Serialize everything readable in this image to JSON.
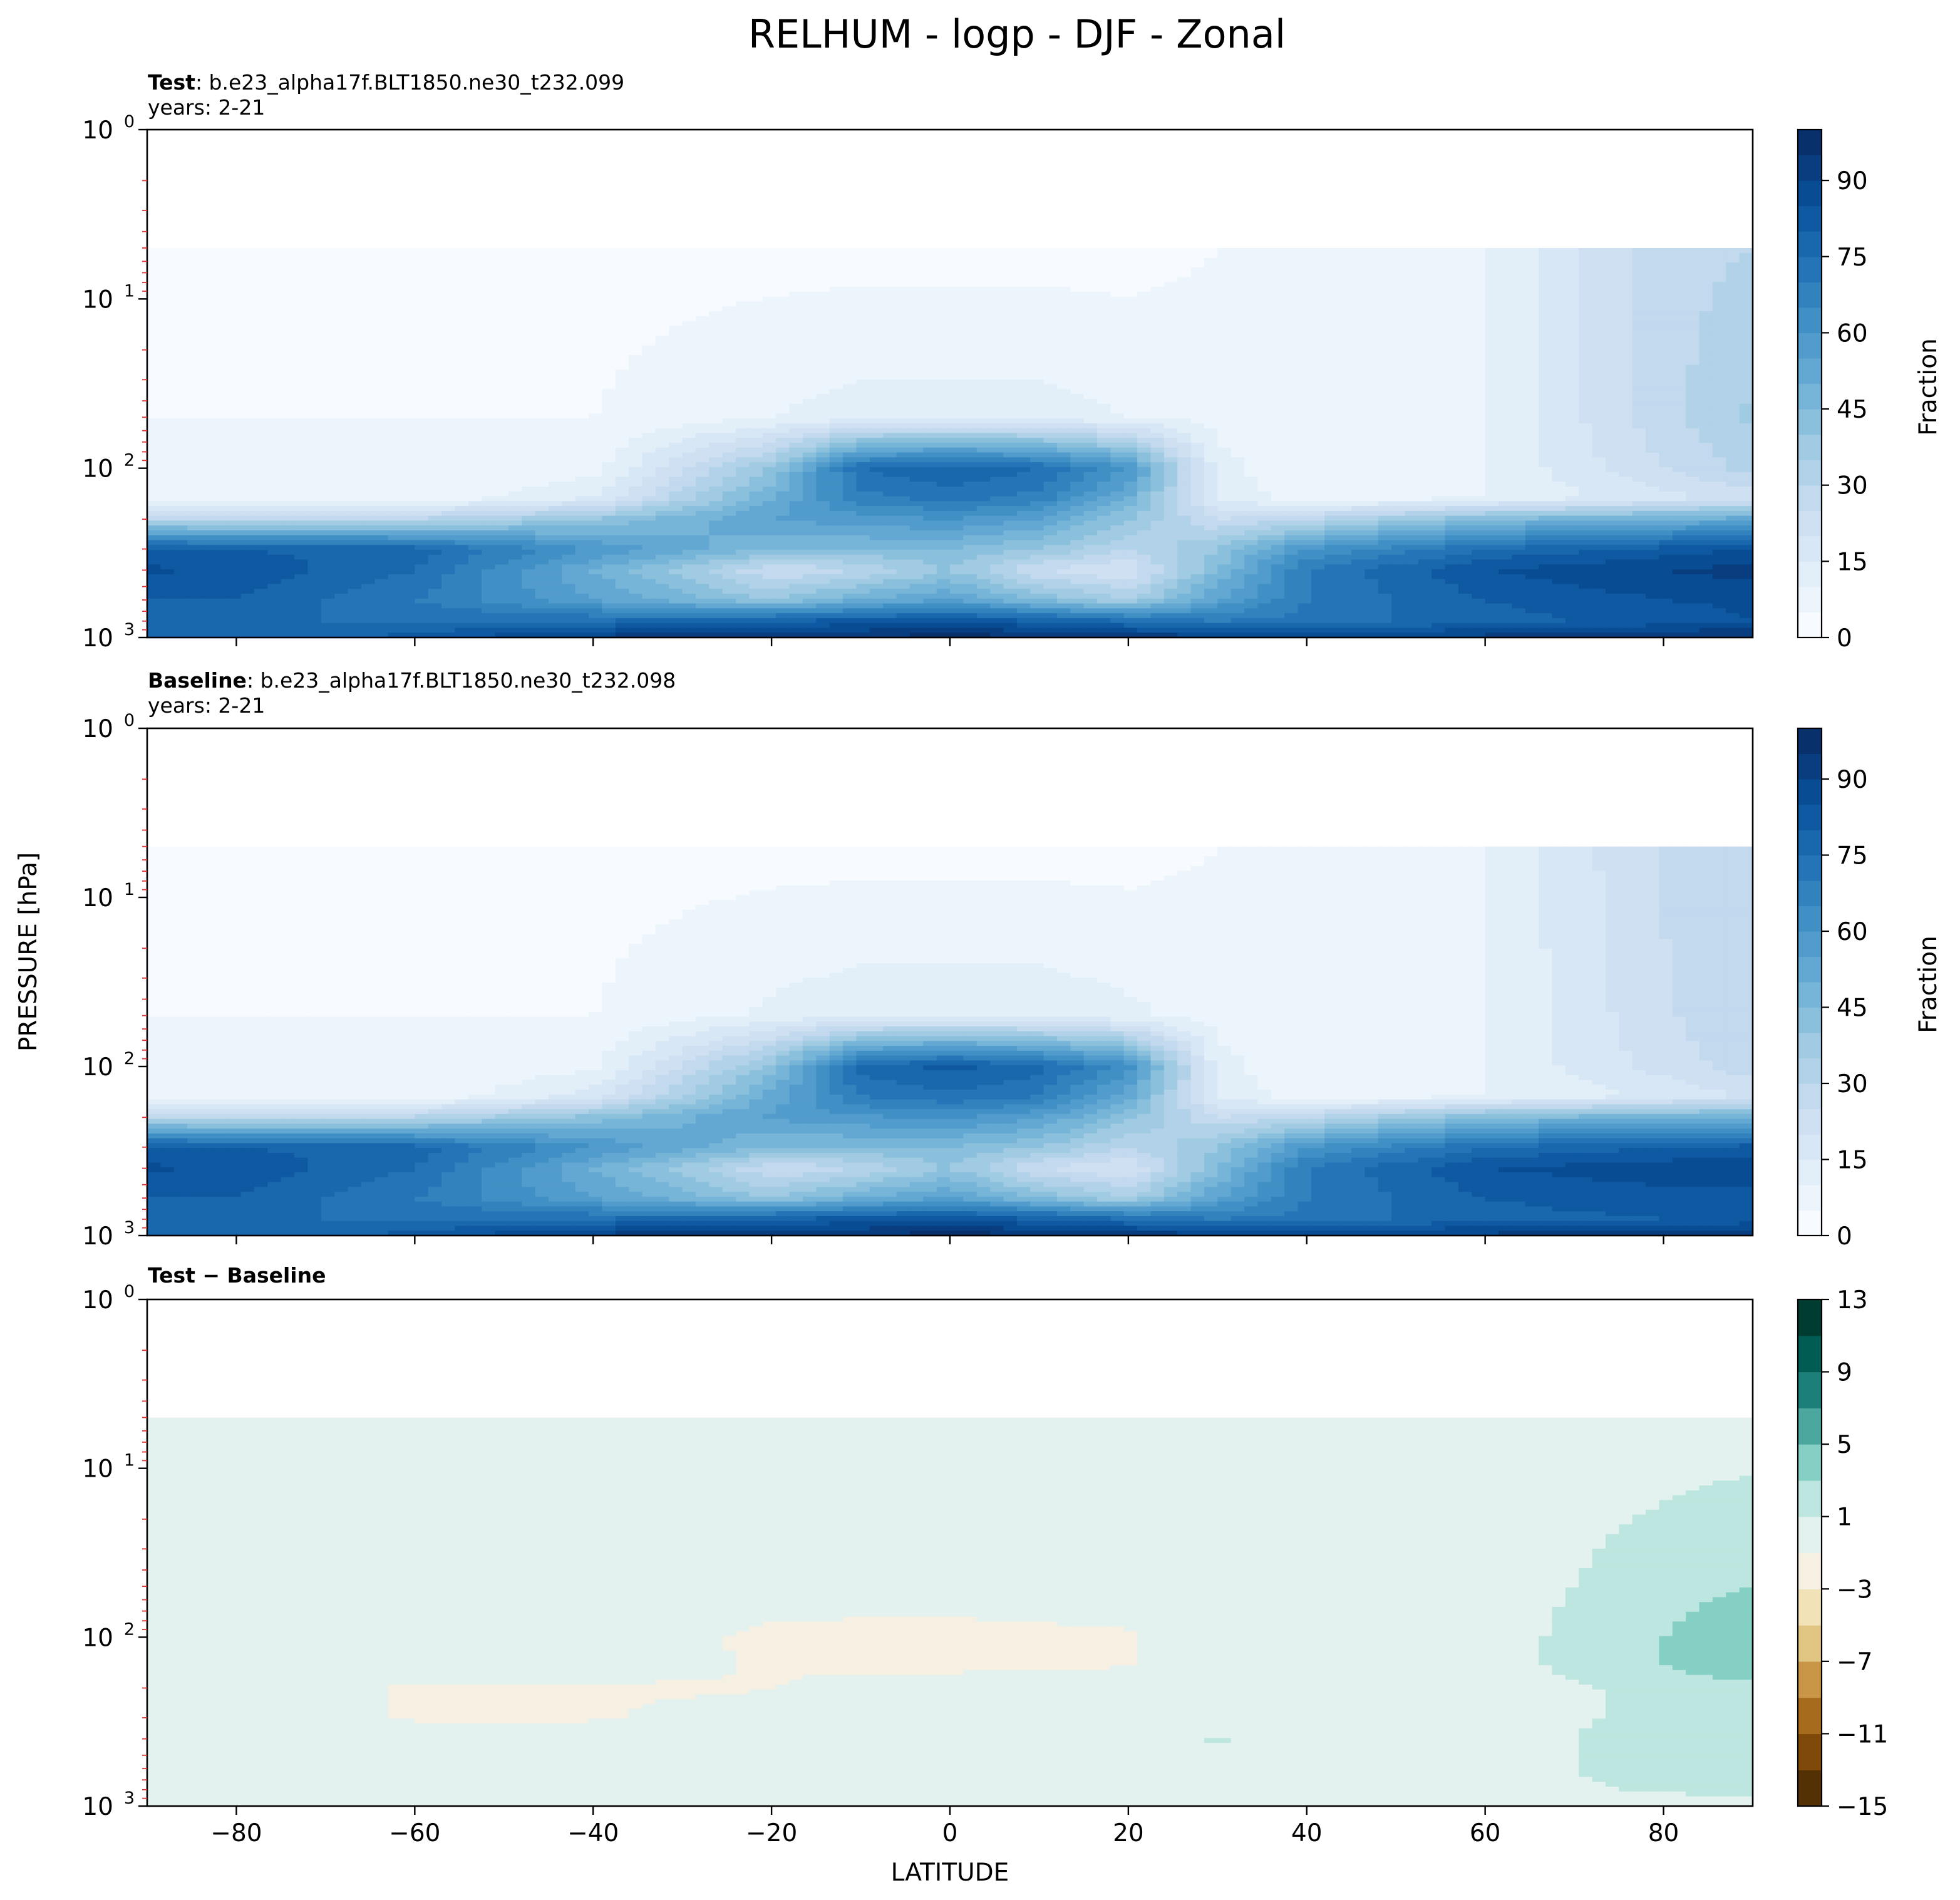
{
  "figure": {
    "title": "RELHUM - logp - DJF - Zonal",
    "ylabel": "PRESSURE [hPa]",
    "xlabel": "LATITUDE"
  },
  "panels": [
    {
      "id": "test",
      "label_bold": "Test",
      "label_sep": ": ",
      "label_case": "b.e23_alpha17f.BLT1850.ne30_t232.099",
      "years": "years: 2-21",
      "colorbar_label": "Fraction",
      "colorbar_ticks": [
        "0",
        "15",
        "30",
        "45",
        "60",
        "75",
        "90"
      ]
    },
    {
      "id": "baseline",
      "label_bold": "Baseline",
      "label_sep": ": ",
      "label_case": "b.e23_alpha17f.BLT1850.ne30_t232.098",
      "years": "years: 2-21",
      "colorbar_label": "Fraction",
      "colorbar_ticks": [
        "0",
        "15",
        "30",
        "45",
        "60",
        "75",
        "90"
      ]
    },
    {
      "id": "diff",
      "label_bold": "Test − Baseline",
      "colorbar_label": "",
      "colorbar_ticks": [
        "−15",
        "−11",
        "−7",
        "−3",
        "1",
        "5",
        "9",
        "13"
      ]
    }
  ],
  "axes": {
    "x_ticks": [
      "−80",
      "−60",
      "−40",
      "−20",
      "0",
      "20",
      "40",
      "60",
      "80"
    ],
    "y_tick_base": "10",
    "y_tick_exps": [
      "0",
      "1",
      "2",
      "3"
    ]
  },
  "chart_data": {
    "type": "heatmap",
    "x": {
      "label": "LATITUDE",
      "range": [
        -90,
        90
      ],
      "ticks": [
        -80,
        -60,
        -40,
        -20,
        0,
        20,
        40,
        60,
        80
      ]
    },
    "y": {
      "label": "PRESSURE [hPa]",
      "scale": "log",
      "inverted": true,
      "range": [
        1,
        1000
      ],
      "ticks": [
        1,
        10,
        100,
        1000
      ]
    },
    "model_top_hPa": 5,
    "lat_nodes": [
      -90,
      -80,
      -60,
      -40,
      -20,
      -10,
      0,
      10,
      20,
      30,
      40,
      60,
      80,
      90
    ],
    "p_nodes_hPa": [
      5,
      50,
      100,
      150,
      200,
      300,
      400,
      600,
      800,
      1000
    ],
    "panels": [
      {
        "name": "Test",
        "colormap": "Blues",
        "levels": [
          0,
          5,
          10,
          15,
          20,
          25,
          30,
          35,
          40,
          45,
          50,
          55,
          60,
          65,
          70,
          75,
          80,
          85,
          90,
          95,
          100
        ],
        "values": [
          [
            3,
            3,
            3,
            3,
            3,
            3,
            3,
            3,
            3,
            5,
            6,
            10,
            28,
            30
          ],
          [
            5,
            5,
            5,
            5,
            10,
            12,
            12,
            12,
            10,
            8,
            8,
            10,
            28,
            36
          ],
          [
            5,
            5,
            5,
            8,
            40,
            75,
            80,
            75,
            60,
            12,
            5,
            10,
            25,
            32
          ],
          [
            6,
            6,
            6,
            15,
            50,
            68,
            72,
            68,
            50,
            15,
            6,
            10,
            18,
            22
          ],
          [
            30,
            30,
            30,
            40,
            55,
            58,
            60,
            55,
            40,
            25,
            30,
            45,
            50,
            52
          ],
          [
            82,
            80,
            78,
            60,
            45,
            45,
            45,
            40,
            30,
            40,
            60,
            75,
            82,
            85
          ],
          [
            86,
            84,
            75,
            50,
            25,
            30,
            40,
            25,
            20,
            45,
            70,
            85,
            90,
            92
          ],
          [
            80,
            80,
            70,
            55,
            40,
            50,
            55,
            45,
            35,
            55,
            70,
            80,
            85,
            86
          ],
          [
            75,
            75,
            75,
            75,
            80,
            82,
            85,
            80,
            75,
            70,
            72,
            78,
            82,
            85
          ],
          [
            75,
            75,
            82,
            92,
            95,
            96,
            98,
            96,
            94,
            92,
            90,
            92,
            95,
            96
          ]
        ]
      },
      {
        "name": "Baseline",
        "colormap": "Blues",
        "levels": [
          0,
          5,
          10,
          15,
          20,
          25,
          30,
          35,
          40,
          45,
          50,
          55,
          60,
          65,
          70,
          75,
          80,
          85,
          90,
          95,
          100
        ],
        "values": [
          [
            3,
            3,
            3,
            3,
            3,
            3,
            3,
            3,
            3,
            5,
            6,
            10,
            26,
            28
          ],
          [
            5,
            5,
            5,
            5,
            11,
            13,
            13,
            13,
            11,
            8,
            8,
            10,
            24,
            30
          ],
          [
            5,
            5,
            5,
            9,
            42,
            77,
            82,
            77,
            62,
            12,
            5,
            10,
            22,
            28
          ],
          [
            6,
            6,
            6,
            17,
            52,
            70,
            74,
            70,
            52,
            15,
            6,
            10,
            16,
            20
          ],
          [
            30,
            30,
            31,
            42,
            56,
            59,
            61,
            56,
            41,
            25,
            30,
            45,
            48,
            50
          ],
          [
            82,
            80,
            78,
            60,
            45,
            45,
            45,
            40,
            30,
            40,
            60,
            75,
            80,
            82
          ],
          [
            86,
            84,
            75,
            50,
            25,
            30,
            40,
            25,
            20,
            44,
            70,
            85,
            88,
            89
          ],
          [
            80,
            80,
            70,
            55,
            40,
            50,
            55,
            45,
            35,
            55,
            70,
            80,
            83,
            83
          ],
          [
            75,
            75,
            75,
            75,
            80,
            82,
            85,
            80,
            75,
            70,
            72,
            78,
            80,
            82
          ],
          [
            75,
            75,
            82,
            92,
            95,
            96,
            98,
            96,
            94,
            92,
            90,
            92,
            94,
            95
          ]
        ]
      },
      {
        "name": "Test − Baseline",
        "colormap": "BrBG",
        "levels": [
          -15,
          -13,
          -11,
          -9,
          -7,
          -5,
          -3,
          -1,
          1,
          3,
          5,
          7,
          9,
          11,
          13
        ],
        "values": [
          [
            0,
            0,
            0,
            0,
            0,
            0,
            0,
            0,
            0,
            0,
            0,
            0,
            0,
            0
          ],
          [
            0,
            0,
            0,
            0,
            0,
            0,
            0,
            0,
            0,
            0,
            0,
            0,
            2,
            3
          ],
          [
            0,
            0,
            0,
            0,
            -1.4,
            -1.6,
            -1.6,
            -1.4,
            -1.2,
            0,
            0,
            0,
            3,
            5
          ],
          [
            0,
            0,
            0,
            0,
            -1.2,
            -1.4,
            -1.4,
            -1.2,
            -1,
            0,
            0,
            0,
            3,
            5
          ],
          [
            0,
            0,
            -1.2,
            -1.3,
            -1.1,
            0,
            0,
            0,
            0,
            0,
            0,
            0,
            1.5,
            2
          ],
          [
            0,
            0,
            -1.2,
            -1.2,
            0,
            0,
            0,
            0,
            0,
            0,
            0,
            0,
            1.5,
            2
          ],
          [
            0,
            0,
            0,
            0,
            0,
            0,
            0,
            0,
            0,
            1.2,
            0,
            0,
            2,
            2.5
          ],
          [
            0,
            0,
            0,
            0,
            0,
            0,
            0,
            0,
            0,
            0,
            0,
            0,
            2,
            2.5
          ],
          [
            0,
            0,
            0,
            0,
            0,
            0,
            0,
            0,
            0,
            0,
            0,
            0,
            1.3,
            1.5
          ],
          [
            0,
            0,
            0,
            0,
            0,
            0,
            0,
            0,
            0,
            0,
            0,
            0,
            0,
            0
          ]
        ]
      }
    ]
  }
}
